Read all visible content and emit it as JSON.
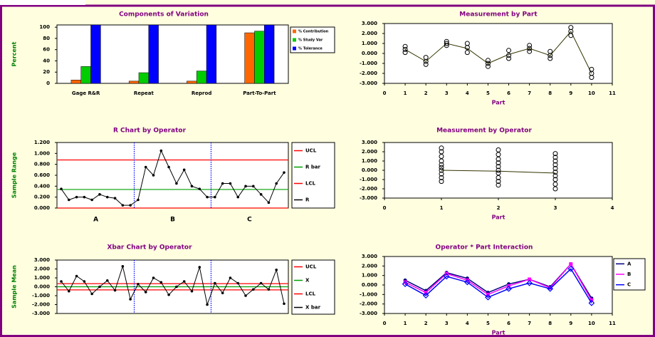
{
  "chart_data": [
    {
      "type": "bar",
      "title": "Components of Variation",
      "y_label": "Percent",
      "categories": [
        "Gage R&R",
        "Repeat",
        "Reprod",
        "Part-To-Part"
      ],
      "series": [
        {
          "name": "% Contribution",
          "color": "#ff6600",
          "values": [
            6,
            4,
            4,
            90
          ]
        },
        {
          "name": "% Study Var",
          "color": "#00cc00",
          "values": [
            30,
            19,
            22,
            93
          ]
        },
        {
          "name": "% Tolerance",
          "color": "#0000ff",
          "values": [
            104,
            104,
            104,
            104
          ]
        }
      ],
      "ylim": [
        0,
        104
      ],
      "yticks": [
        0,
        20,
        40,
        60,
        80,
        100
      ]
    },
    {
      "type": "line",
      "title": "Measurement by Part",
      "x_label": "Part",
      "color": "#333300",
      "x": [
        1,
        2,
        3,
        4,
        5,
        6,
        7,
        8,
        9,
        10
      ],
      "values": [
        0.4,
        -0.8,
        1.0,
        0.5,
        -1.0,
        -0.1,
        0.5,
        -0.2,
        2.2,
        -2.0
      ],
      "points": [
        [
          1,
          0.1
        ],
        [
          1,
          0.4
        ],
        [
          1,
          0.7
        ],
        [
          2,
          -1.1
        ],
        [
          2,
          -0.8
        ],
        [
          2,
          -0.4
        ],
        [
          3,
          0.8
        ],
        [
          3,
          1.0
        ],
        [
          3,
          1.2
        ],
        [
          4,
          0.1
        ],
        [
          4,
          0.6
        ],
        [
          4,
          1.0
        ],
        [
          5,
          -1.3
        ],
        [
          5,
          -1.0
        ],
        [
          5,
          -0.7
        ],
        [
          6,
          -0.5
        ],
        [
          6,
          -0.2
        ],
        [
          6,
          0.3
        ],
        [
          7,
          0.2
        ],
        [
          7,
          0.5
        ],
        [
          7,
          0.8
        ],
        [
          8,
          -0.5
        ],
        [
          8,
          -0.2
        ],
        [
          8,
          0.2
        ],
        [
          9,
          1.8
        ],
        [
          9,
          2.2
        ],
        [
          9,
          2.6
        ],
        [
          10,
          -2.4
        ],
        [
          10,
          -2.0
        ],
        [
          10,
          -1.6
        ]
      ],
      "xlim": [
        0,
        11
      ],
      "xticks": [
        0,
        1,
        2,
        3,
        4,
        5,
        6,
        7,
        8,
        9,
        10,
        11
      ],
      "ylim": [
        -3,
        3
      ],
      "yticks": [
        {
          "value": 3,
          "label": "3.000"
        },
        {
          "value": 2,
          "label": "2.000"
        },
        {
          "value": 1,
          "label": "1.000"
        },
        {
          "value": 0,
          "label": "0.000"
        },
        {
          "value": -1,
          "label": "-1.000"
        },
        {
          "value": -2,
          "label": "-2.000"
        },
        {
          "value": -3,
          "label": "-3.000"
        }
      ]
    },
    {
      "type": "control",
      "title": "R Chart by Operator",
      "y_label": "Sample Range",
      "groups": [
        "A",
        "B",
        "C"
      ],
      "lines": [
        {
          "name": "UCL",
          "color": "#ff0000",
          "value": 0.88
        },
        {
          "name": "R bar",
          "color": "#00a000",
          "value": 0.34
        },
        {
          "name": "LCL",
          "color": "#ff0000",
          "value": 0
        }
      ],
      "series": [
        {
          "name": "R",
          "color": "#000000",
          "values": [
            0.35,
            0.15,
            0.2,
            0.2,
            0.15,
            0.25,
            0.2,
            0.18,
            0.05,
            0.05,
            0.15,
            0.75,
            0.6,
            1.05,
            0.75,
            0.45,
            0.7,
            0.4,
            0.35,
            0.2,
            0.2,
            0.45,
            0.45,
            0.2,
            0.4,
            0.4,
            0.25,
            0.1,
            0.45,
            0.65
          ]
        }
      ],
      "ylim": [
        0,
        1.2
      ],
      "yticks": [
        {
          "value": 1.2,
          "label": "1.200"
        },
        {
          "value": 1,
          "label": "1.000"
        },
        {
          "value": 0.8,
          "label": "0.800"
        },
        {
          "value": 0.6,
          "label": "0.600"
        },
        {
          "value": 0.4,
          "label": "0.400"
        },
        {
          "value": 0.2,
          "label": "0.200"
        },
        {
          "value": 0,
          "label": "0.000"
        }
      ]
    },
    {
      "type": "line",
      "title": "Measurement by Operator",
      "x_label": "Part",
      "color": "#333300",
      "x": [
        1,
        2,
        3
      ],
      "values": [
        0.0,
        -0.1,
        -0.3
      ],
      "points": [
        [
          1,
          -1.2
        ],
        [
          1,
          -0.8
        ],
        [
          1,
          -0.4
        ],
        [
          1,
          0.0
        ],
        [
          1,
          0.3
        ],
        [
          1,
          0.6
        ],
        [
          1,
          1.0
        ],
        [
          1,
          1.5
        ],
        [
          1,
          2.0
        ],
        [
          1,
          2.4
        ],
        [
          2,
          -1.6
        ],
        [
          2,
          -1.2
        ],
        [
          2,
          -0.8
        ],
        [
          2,
          -0.3
        ],
        [
          2,
          0.0
        ],
        [
          2,
          0.4
        ],
        [
          2,
          0.8
        ],
        [
          2,
          1.2
        ],
        [
          2,
          1.7
        ],
        [
          2,
          2.2
        ],
        [
          3,
          -2.0
        ],
        [
          3,
          -1.5
        ],
        [
          3,
          -1.0
        ],
        [
          3,
          -0.6
        ],
        [
          3,
          -0.2
        ],
        [
          3,
          0.2
        ],
        [
          3,
          0.6
        ],
        [
          3,
          1.0
        ],
        [
          3,
          1.4
        ],
        [
          3,
          1.8
        ]
      ],
      "xlim": [
        0,
        4
      ],
      "xticks": [
        0,
        1,
        2,
        3,
        4
      ],
      "ylim": [
        -3,
        3
      ],
      "yticks": [
        {
          "value": 3,
          "label": "3.000"
        },
        {
          "value": 2,
          "label": "2.000"
        },
        {
          "value": 1,
          "label": "1.000"
        },
        {
          "value": 0,
          "label": "0.000"
        },
        {
          "value": -1,
          "label": "-1.000"
        },
        {
          "value": -2,
          "label": "-2.000"
        },
        {
          "value": -3,
          "label": "-3.000"
        }
      ]
    },
    {
      "type": "control",
      "title": "Xbar Chart by Operator",
      "y_label": "Sample Mean",
      "lines": [
        {
          "name": "UCL",
          "color": "#ff0000",
          "value": 0.35
        },
        {
          "name": "X",
          "color": "#00a000",
          "value": 0.0
        },
        {
          "name": "LCL",
          "color": "#ff0000",
          "value": -0.35
        }
      ],
      "series": [
        {
          "name": "X bar",
          "color": "#000000",
          "values": [
            0.6,
            -0.5,
            1.2,
            0.6,
            -0.8,
            0.0,
            0.7,
            -0.4,
            2.3,
            -1.4,
            0.3,
            -0.6,
            1.0,
            0.5,
            -0.9,
            0.0,
            0.6,
            -0.5,
            2.2,
            -2.0,
            0.4,
            -0.7,
            1.0,
            0.4,
            -1.0,
            -0.3,
            0.4,
            -0.3,
            1.9,
            -1.9
          ]
        }
      ],
      "ylim": [
        -3,
        3
      ],
      "yticks": [
        {
          "value": 3,
          "label": "3.000"
        },
        {
          "value": 2,
          "label": "2.000"
        },
        {
          "value": 1,
          "label": "1.000"
        },
        {
          "value": 0,
          "label": "0.000"
        },
        {
          "value": -1,
          "label": "-1.000"
        },
        {
          "value": -2,
          "label": "-2.000"
        },
        {
          "value": -3,
          "label": "-3.000"
        }
      ]
    },
    {
      "type": "multiline",
      "title": "Operator * Part Interaction",
      "x_label": "Part",
      "x": [
        1,
        2,
        3,
        4,
        5,
        6,
        7,
        8,
        9,
        10
      ],
      "series": [
        {
          "name": "A",
          "color": "#000080",
          "values": [
            0.5,
            -0.6,
            1.3,
            0.7,
            -0.8,
            0.1,
            0.6,
            -0.2,
            2.2,
            -1.4
          ]
        },
        {
          "name": "B",
          "color": "#ff00ff",
          "values": [
            0.3,
            -0.8,
            1.2,
            0.5,
            -1.0,
            -0.1,
            0.6,
            -0.3,
            2.2,
            -1.6
          ]
        },
        {
          "name": "C",
          "color": "#0000ff",
          "values": [
            0.1,
            -1.1,
            0.9,
            0.3,
            -1.3,
            -0.4,
            0.2,
            -0.4,
            1.7,
            -1.9
          ]
        }
      ],
      "xlim": [
        0,
        11
      ],
      "xticks": [
        0,
        1,
        2,
        3,
        4,
        5,
        6,
        7,
        8,
        9,
        10,
        11
      ],
      "ylim": [
        -3,
        3
      ],
      "yticks": [
        {
          "value": 3,
          "label": "3.000"
        },
        {
          "value": 2,
          "label": "2.000"
        },
        {
          "value": 1,
          "label": "1.000"
        },
        {
          "value": 0,
          "label": "0.000"
        },
        {
          "value": -1,
          "label": "-1.000"
        },
        {
          "value": -2,
          "label": "-2.000"
        },
        {
          "value": -3,
          "label": "-3.000"
        }
      ]
    }
  ]
}
